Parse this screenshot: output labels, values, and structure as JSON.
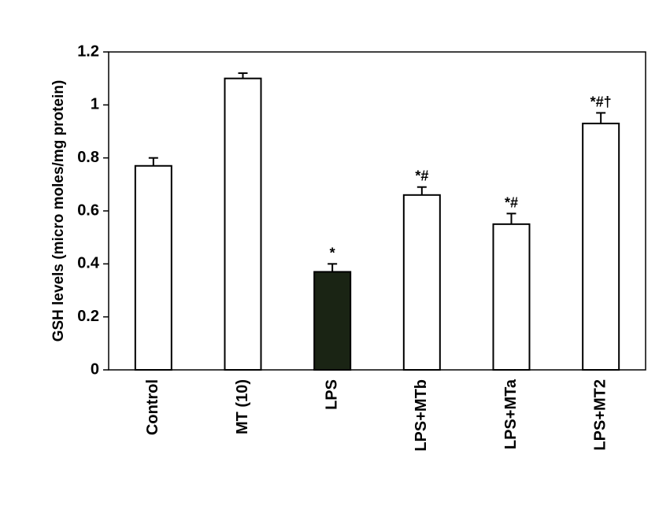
{
  "chart_data": {
    "type": "bar",
    "y_label": "GSH levels (micro moles/mg protein)",
    "categories": [
      "Control",
      "MT (10)",
      "LPS",
      "LPS+MTb",
      "LPS+MTa",
      "LPS+MT2"
    ],
    "values": [
      0.77,
      1.1,
      0.37,
      0.66,
      0.55,
      0.93
    ],
    "errors": [
      0.03,
      0.02,
      0.03,
      0.03,
      0.04,
      0.04
    ],
    "annotations": [
      null,
      null,
      "*",
      "*#",
      "*#",
      "*#†"
    ],
    "colors": [
      "#ffffff",
      "#ffffff",
      "#1a2414",
      "#ffffff",
      "#ffffff",
      "#ffffff"
    ],
    "ylim": [
      0,
      1.2
    ],
    "yticks": [
      0,
      0.2,
      0.4,
      0.6,
      0.8,
      1,
      1.2
    ],
    "grid": false
  }
}
